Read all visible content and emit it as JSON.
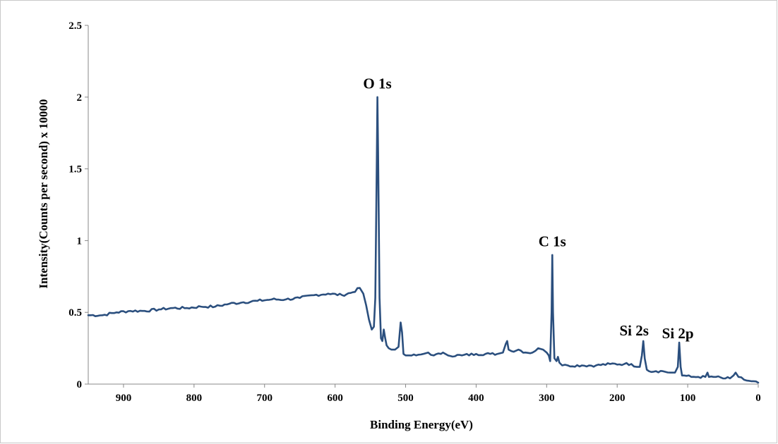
{
  "chart_data": {
    "type": "line",
    "title": "",
    "xlabel": "Binding Energy(eV)",
    "ylabel": "Intensity(Counts per second) x 10000",
    "xlim": [
      950,
      0
    ],
    "ylim": [
      0,
      2.5
    ],
    "x_ticks": [
      900,
      800,
      700,
      600,
      500,
      400,
      300,
      200,
      100,
      0
    ],
    "x_tick_labels": [
      "900",
      "800",
      "700",
      "600",
      "500",
      "400",
      "300",
      "200",
      "100",
      "0"
    ],
    "y_ticks": [
      0,
      0.5,
      1,
      1.5,
      2,
      2.5
    ],
    "y_tick_labels": [
      "0",
      "0.5",
      "1",
      "1.5",
      "2",
      "2.5"
    ],
    "grid": false,
    "legend": "none",
    "line_color": "#2b4f7e",
    "series": [
      {
        "x": [
          950,
          930,
          910,
          890,
          870,
          850,
          830,
          810,
          790,
          770,
          750,
          730,
          710,
          690,
          670,
          650,
          630,
          610,
          590,
          575,
          565,
          560,
          556,
          552,
          548,
          545,
          543,
          541,
          540,
          539,
          537,
          535,
          533,
          531,
          529,
          527,
          524,
          520,
          515,
          510,
          507,
          505,
          503,
          500,
          495,
          485,
          475,
          468,
          460,
          450,
          447,
          440,
          420,
          400,
          380,
          370,
          362,
          358,
          356,
          354,
          350,
          340,
          330,
          320,
          312,
          305,
          300,
          297,
          295,
          293,
          292,
          291,
          289,
          286,
          284,
          282,
          278,
          270,
          250,
          230,
          210,
          190,
          180,
          172,
          168,
          165,
          163,
          161,
          158,
          155,
          145,
          135,
          125,
          118,
          114,
          112,
          110,
          108,
          105,
          95,
          85,
          75,
          72,
          70,
          60,
          50,
          40,
          35,
          32,
          28,
          20,
          10,
          0
        ],
        "y": [
          0.48,
          0.48,
          0.5,
          0.51,
          0.51,
          0.52,
          0.53,
          0.53,
          0.54,
          0.54,
          0.56,
          0.57,
          0.58,
          0.59,
          0.59,
          0.6,
          0.62,
          0.63,
          0.62,
          0.64,
          0.67,
          0.63,
          0.55,
          0.45,
          0.38,
          0.4,
          0.6,
          1.5,
          2.0,
          1.6,
          0.6,
          0.32,
          0.3,
          0.38,
          0.32,
          0.27,
          0.25,
          0.24,
          0.24,
          0.26,
          0.43,
          0.36,
          0.21,
          0.2,
          0.2,
          0.2,
          0.21,
          0.22,
          0.2,
          0.21,
          0.22,
          0.2,
          0.2,
          0.21,
          0.21,
          0.21,
          0.22,
          0.28,
          0.3,
          0.24,
          0.23,
          0.24,
          0.22,
          0.22,
          0.25,
          0.24,
          0.22,
          0.2,
          0.16,
          0.5,
          0.9,
          0.5,
          0.18,
          0.16,
          0.19,
          0.15,
          0.13,
          0.13,
          0.13,
          0.13,
          0.14,
          0.14,
          0.14,
          0.12,
          0.12,
          0.2,
          0.3,
          0.18,
          0.1,
          0.09,
          0.09,
          0.09,
          0.08,
          0.08,
          0.12,
          0.29,
          0.12,
          0.06,
          0.06,
          0.05,
          0.05,
          0.05,
          0.08,
          0.05,
          0.05,
          0.04,
          0.04,
          0.06,
          0.08,
          0.05,
          0.03,
          0.02,
          0.01
        ]
      }
    ],
    "annotations": [
      {
        "text": "O 1s",
        "x": 540,
        "y": 2.06
      },
      {
        "text": "C 1s",
        "x": 292,
        "y": 0.96
      },
      {
        "text": "Si 2s",
        "x": 176,
        "y": 0.34
      },
      {
        "text": "Si 2p",
        "x": 114,
        "y": 0.32
      }
    ]
  }
}
